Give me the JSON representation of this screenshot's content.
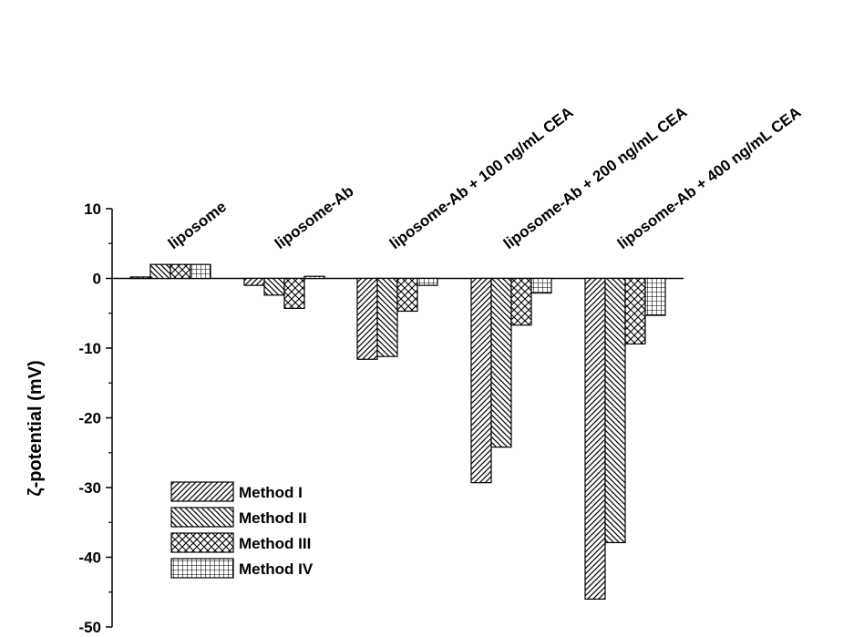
{
  "chart_data": {
    "type": "bar",
    "categories": [
      "liposome",
      "liposome-Ab",
      "liposome-Ab + 100 ng/mL CEA",
      "liposome-Ab + 200 ng/mL CEA",
      "liposome-Ab + 400 ng/mL CEA"
    ],
    "series": [
      {
        "name": "Method I",
        "pattern": "diag-right",
        "values": [
          0.2,
          -1.0,
          -11.6,
          -29.3,
          -46.0
        ]
      },
      {
        "name": "Method II",
        "pattern": "diag-left",
        "values": [
          2.0,
          -2.4,
          -11.2,
          -24.2,
          -37.9
        ]
      },
      {
        "name": "Method III",
        "pattern": "cross-hatch",
        "values": [
          2.0,
          -4.3,
          -4.7,
          -6.7,
          -9.4
        ]
      },
      {
        "name": "Method IV",
        "pattern": "grid",
        "values": [
          2.0,
          0.3,
          -1.0,
          -2.1,
          -5.3
        ]
      }
    ],
    "title": "",
    "xlabel": "",
    "ylabel": "ζ-potential (mV)",
    "ylim": [
      -50,
      10
    ],
    "yticks": [
      10,
      0,
      -10,
      -20,
      -30,
      -40,
      -50
    ],
    "ytick_labels": [
      "10",
      "0",
      "-10",
      "-20",
      "-30",
      "-40",
      "-50"
    ],
    "grid": false,
    "legend_position": "lower-left",
    "bar_fill": "#ffffff",
    "bar_stroke": "#000000"
  }
}
